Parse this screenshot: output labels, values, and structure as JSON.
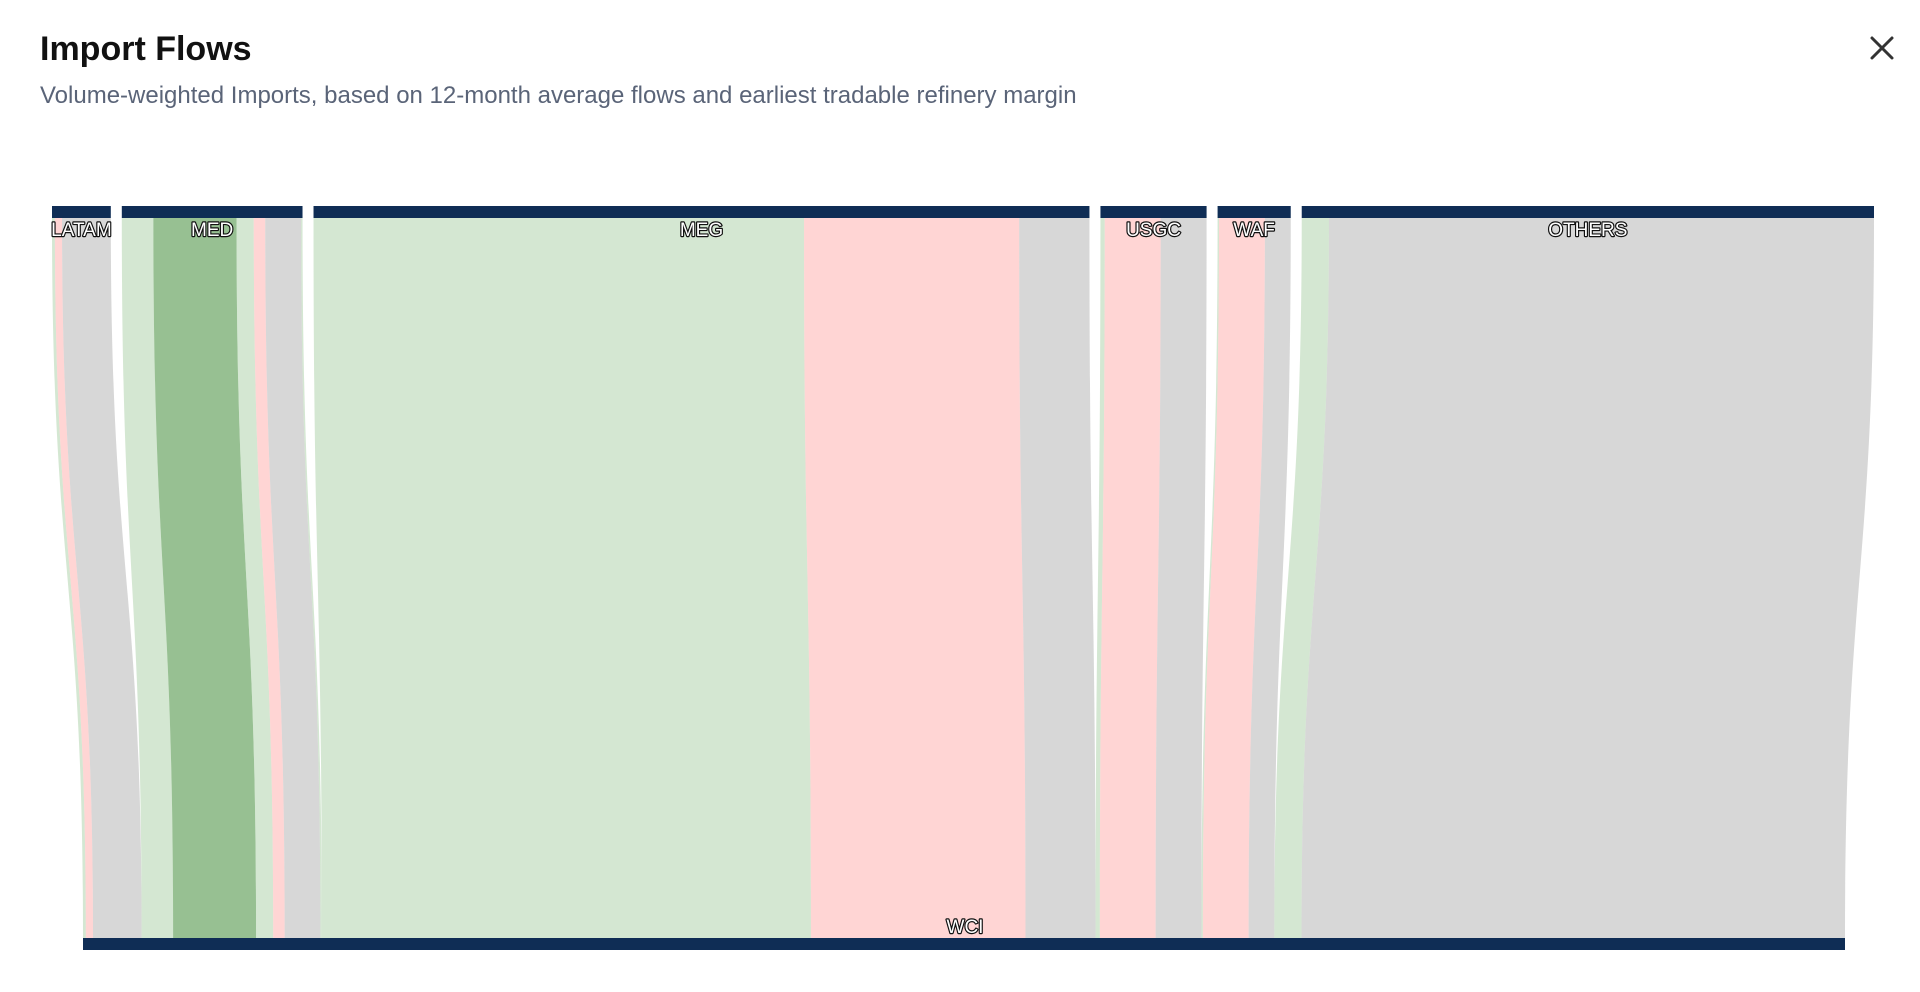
{
  "dialog": {
    "title": "Import Flows",
    "subtitle": "Volume-weighted Imports, based on 12-month average flows and earliest tradable refinery margin",
    "close_icon": "close-icon"
  },
  "colors": {
    "node_bar": "#0f2d55",
    "positive_margin": "#a9cfa6",
    "strong_positive_margin": "#5f9e57",
    "negative_margin": "#ffb3b0",
    "neutral_margin": "#bdbdbd"
  },
  "chart_data": {
    "type": "sankey",
    "title": "Import Flows",
    "subtitle": "Volume-weighted Imports, based on 12-month average flows and earliest tradable refinery margin",
    "sources": [
      "LATAM",
      "MED",
      "MEG",
      "USGC",
      "WAF",
      "OTHERS"
    ],
    "target": "WCI",
    "links": [
      {
        "source": "LATAM",
        "value": 0.2,
        "category": "positive"
      },
      {
        "source": "LATAM",
        "value": 0.5,
        "category": "negative"
      },
      {
        "source": "LATAM",
        "value": 3.4,
        "category": "neutral"
      },
      {
        "source": "MED",
        "value": 2.2,
        "category": "positive"
      },
      {
        "source": "MED",
        "value": 5.8,
        "category": "strong_positive"
      },
      {
        "source": "MED",
        "value": 1.2,
        "category": "positive"
      },
      {
        "source": "MED",
        "value": 0.8,
        "category": "negative"
      },
      {
        "source": "MED",
        "value": 2.5,
        "category": "neutral"
      },
      {
        "source": "MED",
        "value": 0.1,
        "category": "positive"
      },
      {
        "source": "MEG",
        "value": 34.2,
        "category": "positive"
      },
      {
        "source": "MEG",
        "value": 15.0,
        "category": "negative"
      },
      {
        "source": "MEG",
        "value": 4.9,
        "category": "neutral"
      },
      {
        "source": "USGC",
        "value": 0.3,
        "category": "positive"
      },
      {
        "source": "USGC",
        "value": 3.9,
        "category": "negative"
      },
      {
        "source": "USGC",
        "value": 3.2,
        "category": "neutral"
      },
      {
        "source": "WAF",
        "value": 0.1,
        "category": "positive"
      },
      {
        "source": "WAF",
        "value": 3.2,
        "category": "negative"
      },
      {
        "source": "WAF",
        "value": 1.8,
        "category": "neutral"
      },
      {
        "source": "OTHERS",
        "value": 1.9,
        "category": "positive"
      },
      {
        "source": "OTHERS",
        "value": 38.0,
        "category": "neutral"
      }
    ]
  }
}
